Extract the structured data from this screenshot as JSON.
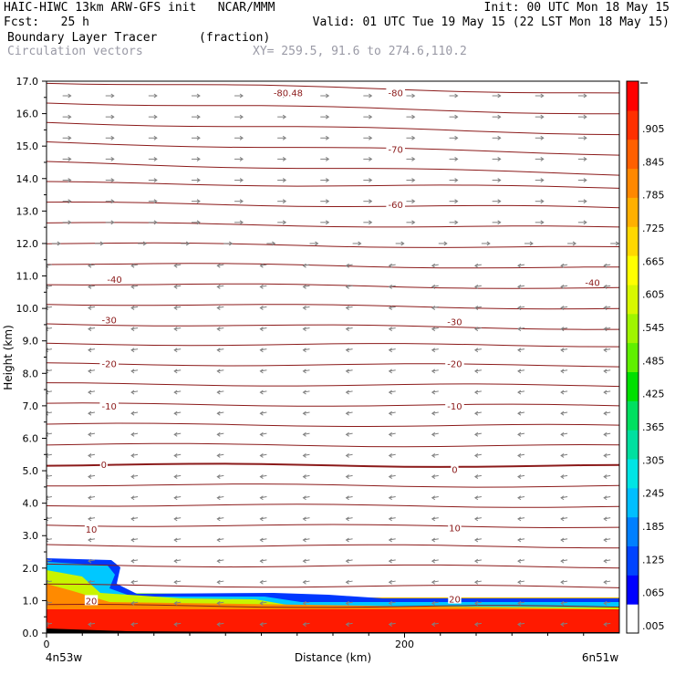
{
  "header": {
    "model_line": "HAIC-HIWC 13km ARW-GFS init   NCAR/MMM",
    "init": "Init: 00 UTC Mon 18 May 15",
    "fcst": "Fcst:   25 h",
    "valid": "Valid: 01 UTC Tue 19 May 15 (22 LST Mon 18 May 15)",
    "field": "Boundary Layer Tracer",
    "units": "(fraction)",
    "vectors": "Circulation vectors",
    "xy": "XY= 259.5, 91.6 to 274.6,110.2"
  },
  "colors": {
    "contour": "#8b1a1a",
    "vector": "#808080",
    "colorbar": [
      "#ffffff",
      "#0000ff",
      "#0044ff",
      "#0080ff",
      "#00bfff",
      "#00e5e5",
      "#00e0a0",
      "#00e060",
      "#00e000",
      "#60f000",
      "#a0f500",
      "#d8f800",
      "#ffff00",
      "#ffd800",
      "#ffb000",
      "#ff8800",
      "#ff6000",
      "#ff3000",
      "#ff0000"
    ]
  },
  "chart_data": {
    "type": "contour",
    "xlabel": "Distance (km)",
    "ylabel": "Height (km)",
    "xlim": [
      0,
      320
    ],
    "ylim": [
      0,
      17
    ],
    "x_ticks": [
      "0",
      "200"
    ],
    "x_end_labels": [
      "4n53w",
      "6n51w"
    ],
    "y_ticks": [
      "0.0",
      "1.0",
      "2.0",
      "3.0",
      "4.0",
      "5.0",
      "6.0",
      "7.0",
      "8.0",
      "9.0",
      "10.0",
      "11.0",
      "12.0",
      "13.0",
      "14.0",
      "15.0",
      "16.0",
      "17.0"
    ],
    "colorbar_labels": [
      ".005",
      ".065",
      ".125",
      ".185",
      ".245",
      ".305",
      ".365",
      ".425",
      ".485",
      ".545",
      ".605",
      ".665",
      ".725",
      ".785",
      ".845",
      ".905"
    ],
    "contour_labels": [
      {
        "text": "-80.48",
        "x": 135,
        "y": 16.65
      },
      {
        "text": "-80",
        "x": 195,
        "y": 16.65
      },
      {
        "text": "-70",
        "x": 195,
        "y": 14.9
      },
      {
        "text": "-60",
        "x": 195,
        "y": 13.2
      },
      {
        "text": "-40",
        "x": 38,
        "y": 10.9
      },
      {
        "text": "-40",
        "x": 305,
        "y": 10.8
      },
      {
        "text": "-30",
        "x": 35,
        "y": 9.65
      },
      {
        "text": "-30",
        "x": 228,
        "y": 9.6
      },
      {
        "text": "-20",
        "x": 35,
        "y": 8.3
      },
      {
        "text": "-20",
        "x": 228,
        "y": 8.3
      },
      {
        "text": "-10",
        "x": 35,
        "y": 7.0
      },
      {
        "text": "-10",
        "x": 228,
        "y": 7.0
      },
      {
        "text": "0",
        "x": 32,
        "y": 5.2
      },
      {
        "text": "0",
        "x": 228,
        "y": 5.05
      },
      {
        "text": "10",
        "x": 25,
        "y": 3.2
      },
      {
        "text": "10",
        "x": 228,
        "y": 3.25
      },
      {
        "text": "20",
        "x": 25,
        "y": 1.0
      },
      {
        "text": "20",
        "x": 228,
        "y": 1.05
      }
    ],
    "grid": false
  }
}
